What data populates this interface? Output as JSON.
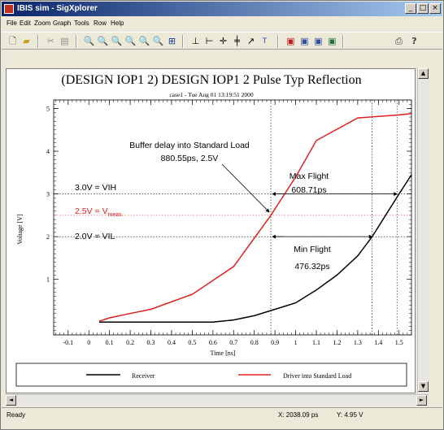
{
  "window": {
    "title": "IBIS sim - SigXplorer",
    "controls": {
      "minimize": "_",
      "maximize": "□",
      "close": "×"
    }
  },
  "menu": [
    "File",
    "Edit",
    "Zoom",
    "Graph",
    "Tools",
    "Row",
    "Help"
  ],
  "toolbar_icons": [
    "new-file-icon",
    "open-folder-icon",
    "cut-icon",
    "paste-icon",
    "zoom-in-icon",
    "zoom-out-icon",
    "zoom-fit-icon",
    "zoom-previous-icon",
    "zoom-next-icon",
    "zoom-area-icon",
    "zoom-all-icon",
    "vertical-marker-icon",
    "horizontal-marker-icon",
    "crosshair-icon",
    "cross-marker-icon",
    "slope-marker-icon",
    "text-annotation-icon",
    "waveform-view-icon",
    "eye-diagram-icon",
    "spectrum-view-icon",
    "table-view-icon",
    "print-icon",
    "help-icon"
  ],
  "chart_data": {
    "type": "line",
    "title": "(DESIGN IOP1 2) DESIGN IOP1 2 Pulse Typ Reflection",
    "subtitle": "case1 - Tue Aug 01 13:19:51 2000",
    "xlabel": "Time [ns]",
    "ylabel": "Voltage [V]",
    "xlim": [
      -0.17,
      1.56
    ],
    "ylim": [
      -0.3,
      5.2
    ],
    "x_ticks": [
      "-0.1",
      "0",
      "0.1",
      "0.2",
      "0.3",
      "0.4",
      "0.5",
      "0.6",
      "0.7",
      "0.8",
      "0.9",
      "1",
      "1.1",
      "1.2",
      "1.3",
      "1.4",
      "1.5"
    ],
    "y_ticks": [
      "1",
      "2",
      "3",
      "4",
      "5"
    ],
    "grid": false,
    "legend_position": "bottom",
    "series": [
      {
        "name": "Receiver",
        "color": "#000000",
        "x": [
          0.05,
          0.6,
          0.7,
          0.8,
          0.9,
          1.0,
          1.1,
          1.2,
          1.3,
          1.37,
          1.5,
          1.56
        ],
        "y": [
          0,
          0,
          0.05,
          0.15,
          0.3,
          0.45,
          0.75,
          1.1,
          1.55,
          2.0,
          3.0,
          3.45
        ]
      },
      {
        "name": "Driver into Standard Load",
        "color": "#e02020",
        "x": [
          0.05,
          0.1,
          0.2,
          0.3,
          0.5,
          0.7,
          0.88,
          1.0,
          1.1,
          1.3,
          1.5,
          1.56
        ],
        "y": [
          0.02,
          0.1,
          0.2,
          0.3,
          0.65,
          1.3,
          2.5,
          3.4,
          4.25,
          4.78,
          4.85,
          4.88
        ]
      }
    ],
    "reference_lines": [
      {
        "label_text": "3.0V = VIH",
        "value": 3.0,
        "color": "#000000"
      },
      {
        "label_text": "2.5V = V",
        "label_sub": "meas",
        "value": 2.5,
        "color": "#e02020"
      },
      {
        "label_text": "2.0V = VIL",
        "value": 2.0,
        "color": "#000000"
      }
    ],
    "vertical_markers": [
      0.88,
      1.37,
      1.49
    ],
    "annotations": {
      "buffer_delay": {
        "line1": "Buffer delay into Standard Load",
        "line2": "880.55ps, 2.5V",
        "x": 0.88,
        "y": 2.5
      },
      "max_flight": {
        "line1": "Max Flight",
        "line2": "608.71ps",
        "x_start": 0.88,
        "x_end": 1.49,
        "y": 3.0
      },
      "min_flight": {
        "line1": "Min Flight",
        "line2": "476.32ps",
        "x_start": 0.88,
        "x_end": 1.37,
        "y": 2.0
      }
    }
  },
  "status": {
    "left": "Ready",
    "x_readout": "X: 2038.09 ps",
    "y_readout": "Y: 4.95 V"
  }
}
